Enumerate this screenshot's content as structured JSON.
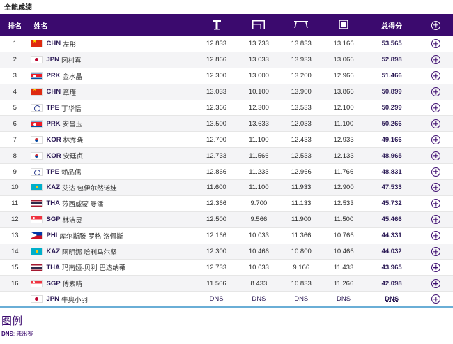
{
  "section": {
    "title": "全能成绩"
  },
  "header": {
    "rank": "排名",
    "name": "姓名",
    "apparatus_icons": [
      "vault-icon",
      "uneven-bars-icon",
      "balance-beam-icon",
      "floor-exercise-icon"
    ],
    "total": "总得分"
  },
  "rows": [
    {
      "rank": "1",
      "noc": "CHN",
      "name": "左彤",
      "flag": "f-chn",
      "vt": "12.833",
      "ub": "13.733",
      "bb": "13.833",
      "fx": "13.166",
      "total": "53.565"
    },
    {
      "rank": "2",
      "noc": "JPN",
      "name": "冈村真",
      "flag": "f-jpn",
      "vt": "12.866",
      "ub": "13.033",
      "bb": "13.933",
      "fx": "13.066",
      "total": "52.898"
    },
    {
      "rank": "3",
      "noc": "PRK",
      "name": "金水晶",
      "flag": "f-prk",
      "vt": "12.300",
      "ub": "13.000",
      "bb": "13.200",
      "fx": "12.966",
      "total": "51.466"
    },
    {
      "rank": "4",
      "noc": "CHN",
      "name": "章瑾",
      "flag": "f-chn",
      "vt": "13.033",
      "ub": "10.100",
      "bb": "13.900",
      "fx": "13.866",
      "total": "50.899"
    },
    {
      "rank": "5",
      "noc": "TPE",
      "name": "丁华恬",
      "flag": "f-tpe",
      "vt": "12.366",
      "ub": "12.300",
      "bb": "13.533",
      "fx": "12.100",
      "total": "50.299"
    },
    {
      "rank": "6",
      "noc": "PRK",
      "name": "安昌玉",
      "flag": "f-prk",
      "vt": "13.500",
      "ub": "13.633",
      "bb": "12.033",
      "fx": "11.100",
      "total": "50.266"
    },
    {
      "rank": "7",
      "noc": "KOR",
      "name": "林秀晓",
      "flag": "f-kor",
      "vt": "12.700",
      "ub": "11.100",
      "bb": "12.433",
      "fx": "12.933",
      "total": "49.166"
    },
    {
      "rank": "8",
      "noc": "KOR",
      "name": "安廷贞",
      "flag": "f-kor",
      "vt": "12.733",
      "ub": "11.566",
      "bb": "12.533",
      "fx": "12.133",
      "total": "48.965"
    },
    {
      "rank": "9",
      "noc": "TPE",
      "name": "赖品儒",
      "flag": "f-tpe",
      "vt": "12.866",
      "ub": "11.233",
      "bb": "12.966",
      "fx": "11.766",
      "total": "48.831"
    },
    {
      "rank": "10",
      "noc": "KAZ",
      "name": "艾达 包伊尔然诺娃",
      "flag": "f-kaz",
      "vt": "11.600",
      "ub": "11.100",
      "bb": "11.933",
      "fx": "12.900",
      "total": "47.533"
    },
    {
      "rank": "11",
      "noc": "THA",
      "name": "莎西威蒙 曼潘",
      "flag": "f-tha",
      "vt": "12.366",
      "ub": "9.700",
      "bb": "11.133",
      "fx": "12.533",
      "total": "45.732"
    },
    {
      "rank": "12",
      "noc": "SGP",
      "name": "林洁灵",
      "flag": "f-sgp",
      "vt": "12.500",
      "ub": "9.566",
      "bb": "11.900",
      "fx": "11.500",
      "total": "45.466"
    },
    {
      "rank": "13",
      "noc": "PHI",
      "name": "库尔斯滕·罗格 洛佩斯",
      "flag": "f-phi",
      "vt": "12.166",
      "ub": "10.033",
      "bb": "11.366",
      "fx": "10.766",
      "total": "44.331"
    },
    {
      "rank": "14",
      "noc": "KAZ",
      "name": "阿明娜 哈利马尔坚",
      "flag": "f-kaz",
      "vt": "12.300",
      "ub": "10.466",
      "bb": "10.800",
      "fx": "10.466",
      "total": "44.032"
    },
    {
      "rank": "15",
      "noc": "THA",
      "name": "玛南娅·贝利 巴达纳蒂",
      "flag": "f-tha",
      "vt": "12.733",
      "ub": "10.633",
      "bb": "9.166",
      "fx": "11.433",
      "total": "43.965"
    },
    {
      "rank": "16",
      "noc": "SGP",
      "name": "傅紫晴",
      "flag": "f-sgp",
      "vt": "11.566",
      "ub": "8.433",
      "bb": "10.833",
      "fx": "11.266",
      "total": "42.098"
    },
    {
      "rank": "",
      "noc": "JPN",
      "name": "牛奥小羽",
      "flag": "f-jpn",
      "vt": "DNS",
      "ub": "DNS",
      "bb": "DNS",
      "fx": "DNS",
      "total": "DNS"
    }
  ],
  "legend": {
    "title": "图例",
    "items": [
      {
        "abbr": "DNS",
        "desc": "未出赛"
      }
    ]
  },
  "colors": {
    "header_bg": "#3b0a6e",
    "accent": "#3b0a6e",
    "divider": "#6aaed6"
  }
}
